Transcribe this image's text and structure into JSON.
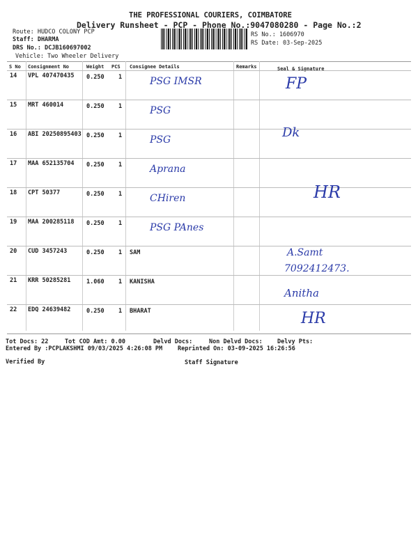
{
  "header": {
    "company": "THE PROFESSIONAL COURIERS, COIMBATORE",
    "subtitle": "Delivery Runsheet - PCP - Phone No.:9047080280 - Page No.:2",
    "route": "Route: HUDCO COLONY PCP",
    "staff": "Staff: DHARMA",
    "drs": "DRS No.: DCJB160697002",
    "vehicle": "Vehicle: Two Wheeler Delivery",
    "rs_no": "RS No.: 1606970",
    "rs_date": "RS Date: 03-Sep-2025"
  },
  "columns": [
    "S No",
    "Consignment No",
    "Weight",
    "PCS",
    "Consignee Details",
    "Remarks",
    "Seal & Signature"
  ],
  "rows": [
    {
      "sno": "14",
      "cn": "VPL 407470435",
      "weight": "0.250",
      "pcs": "1",
      "consignee": "",
      "hand": "PSG IMSR"
    },
    {
      "sno": "15",
      "cn": "MRT 460014",
      "weight": "0.250",
      "pcs": "1",
      "consignee": "",
      "hand": "PSG"
    },
    {
      "sno": "16",
      "cn": "ABI 20250895403",
      "weight": "0.250",
      "pcs": "1",
      "consignee": "",
      "hand": "PSG"
    },
    {
      "sno": "17",
      "cn": "MAA 652135704",
      "weight": "0.250",
      "pcs": "1",
      "consignee": "",
      "hand": "Aprana"
    },
    {
      "sno": "18",
      "cn": "CPT 50377",
      "weight": "0.250",
      "pcs": "1",
      "consignee": "",
      "hand": "CHiren"
    },
    {
      "sno": "19",
      "cn": "MAA 200285118",
      "weight": "0.250",
      "pcs": "1",
      "consignee": "",
      "hand": "PSG PAnes"
    },
    {
      "sno": "20",
      "cn": "CUD 3457243",
      "weight": "0.250",
      "pcs": "1",
      "consignee": "SAM",
      "hand": ""
    },
    {
      "sno": "21",
      "cn": "KRR 50285281",
      "weight": "1.060",
      "pcs": "1",
      "consignee": "KANISHA",
      "hand": ""
    },
    {
      "sno": "22",
      "cn": "EDQ 24639482",
      "weight": "0.250",
      "pcs": "1",
      "consignee": "BHARAT",
      "hand": ""
    }
  ],
  "signatures": [
    "FP",
    "Dk",
    "HR",
    "A.Samt",
    "7092412473.",
    "Anitha",
    "HR"
  ],
  "footer": {
    "tot_docs": "Tot Docs:  22",
    "tot_cod": "Tot COD Amt:    0.00",
    "delvd": "Delvd Docs:",
    "non_delvd": "Non Delvd Docs:",
    "delvy_pts": "Delvy Pts:",
    "entered_by": "Entered By :PCPLAKSHMI 09/03/2025 4:26:08 PM",
    "reprinted": "Reprinted On: 03-09-2025 16:26:56",
    "verified_by": "Verified By",
    "staff_signature": "Staff Signature"
  }
}
